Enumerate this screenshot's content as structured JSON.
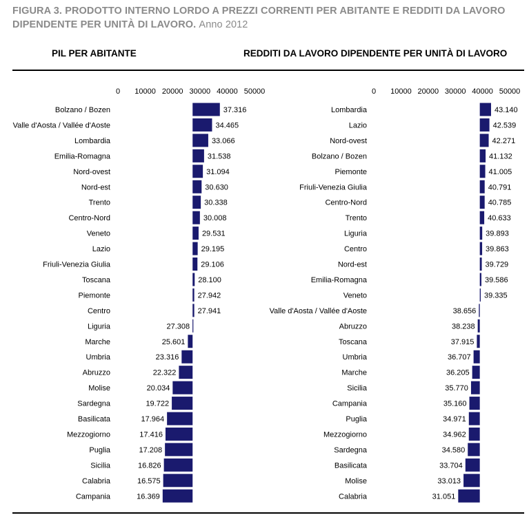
{
  "figure": {
    "title_bold": "FIGURA 3. PRODOTTO INTERNO LORDO A PREZZI CORRENTI PER ABITANTE E REDDITI DA LAVORO DIPENDENTE PER UNITÀ DI LAVORO.",
    "title_year": "Anno 2012"
  },
  "colors": {
    "bar": "#1a1a6e",
    "title": "#8a8a8a"
  },
  "chart_data": [
    {
      "type": "bar",
      "orientation": "horizontal",
      "title": "PIL PER ABITANTE",
      "xlim": [
        0,
        50000
      ],
      "ticks": [
        "0",
        "10000",
        "20000",
        "30000",
        "40000",
        "50000"
      ],
      "reference": 27336,
      "categories": [
        "Bolzano / Bozen",
        "Valle d'Aosta / Vallée d'Aoste",
        "Lombardia",
        "Emilia-Romagna",
        "Nord-ovest",
        "Nord-est",
        "Trento",
        "Centro-Nord",
        "Veneto",
        "Lazio",
        "Friuli-Venezia Giulia",
        "Toscana",
        "Piemonte",
        "Centro",
        "Liguria",
        "Marche",
        "Umbria",
        "Abruzzo",
        "Molise",
        "Sardegna",
        "Basilicata",
        "Mezzogiorno",
        "Puglia",
        "Sicilia",
        "Calabria",
        "Campania"
      ],
      "values": [
        37316,
        34465,
        33066,
        31538,
        31094,
        30630,
        30338,
        30008,
        29531,
        29195,
        29106,
        28100,
        27942,
        27941,
        27308,
        25601,
        23316,
        22322,
        20034,
        19722,
        17964,
        17416,
        17208,
        16826,
        16575,
        16369
      ],
      "labels": [
        "37.316",
        "34.465",
        "33.066",
        "31.538",
        "31.094",
        "30.630",
        "30.338",
        "30.008",
        "29.531",
        "29.195",
        "29.106",
        "28.100",
        "27.942",
        "27.941",
        "27.308",
        "25.601",
        "23.316",
        "22.322",
        "20.034",
        "19.722",
        "17.964",
        "17.416",
        "17.208",
        "16.826",
        "16.575",
        "16.369"
      ]
    },
    {
      "type": "bar",
      "orientation": "horizontal",
      "title": "REDDITI DA LAVORO DIPENDENTE PER UNITÀ DI LAVORO",
      "xlim": [
        0,
        50000
      ],
      "ticks": [
        "0",
        "10000",
        "20000",
        "30000",
        "40000",
        "50000"
      ],
      "reference": 39000,
      "categories": [
        "Lombardia",
        "Lazio",
        "Nord-ovest",
        "Bolzano / Bozen",
        "Piemonte",
        "Friuli-Venezia Giulia",
        "Centro-Nord",
        "Trento",
        "Liguria",
        "Centro",
        "Nord-est",
        "Emilia-Romagna",
        "Veneto",
        "Valle d'Aosta / Vallée d'Aoste",
        "Abruzzo",
        "Toscana",
        "Umbria",
        "Marche",
        "Sicilia",
        "Campania",
        "Puglia",
        "Mezzogiorno",
        "Sardegna",
        "Basilicata",
        "Molise",
        "Calabria"
      ],
      "values": [
        43140,
        42539,
        42271,
        41132,
        41005,
        40791,
        40785,
        40633,
        39893,
        39863,
        39729,
        39586,
        39335,
        38656,
        38238,
        37915,
        36707,
        36205,
        35770,
        35160,
        34971,
        34962,
        34580,
        33704,
        33013,
        31051
      ],
      "labels": [
        "43.140",
        "42.539",
        "42.271",
        "41.132",
        "41.005",
        "40.791",
        "40.785",
        "40.633",
        "39.893",
        "39.863",
        "39.729",
        "39.586",
        "39.335",
        "38.656",
        "38.238",
        "37.915",
        "36.707",
        "36.205",
        "35.770",
        "35.160",
        "34.971",
        "34.962",
        "34.580",
        "33.704",
        "33.013",
        "31.051"
      ]
    }
  ]
}
